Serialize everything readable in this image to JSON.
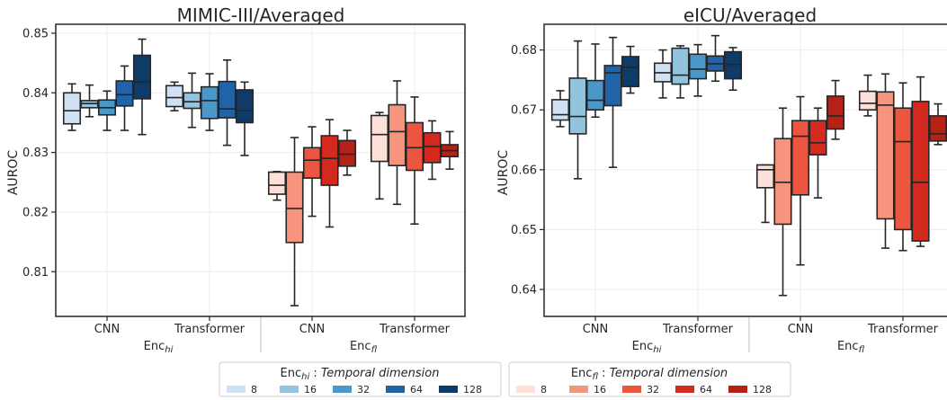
{
  "chart_data": [
    {
      "type": "box",
      "title": "MIMIC-III/Averaged",
      "ylabel": "AUROC",
      "ylim": [
        0.8025,
        0.8515
      ],
      "yticks": [
        0.81,
        0.82,
        0.83,
        0.84,
        0.85
      ],
      "ytick_labels": [
        "0.81",
        "0.82",
        "0.83",
        "0.84",
        "0.85"
      ],
      "grid": true,
      "groups": [
        {
          "label": "CNN",
          "family": "hi",
          "boxes": [
            {
              "t": "8",
              "whislo": 0.8337,
              "q1": 0.8348,
              "med": 0.837,
              "q3": 0.84,
              "whishi": 0.8415
            },
            {
              "t": "16",
              "whislo": 0.836,
              "q1": 0.8375,
              "med": 0.8382,
              "q3": 0.8387,
              "whishi": 0.8413
            },
            {
              "t": "32",
              "whislo": 0.8337,
              "q1": 0.8363,
              "med": 0.8375,
              "q3": 0.8388,
              "whishi": 0.8403
            },
            {
              "t": "64",
              "whislo": 0.8337,
              "q1": 0.8378,
              "med": 0.8397,
              "q3": 0.842,
              "whishi": 0.8445
            },
            {
              "t": "128",
              "whislo": 0.833,
              "q1": 0.839,
              "med": 0.8418,
              "q3": 0.8463,
              "whishi": 0.849
            }
          ]
        },
        {
          "label": "Transformer",
          "family": "hi",
          "boxes": [
            {
              "t": "8",
              "whislo": 0.837,
              "q1": 0.8377,
              "med": 0.8392,
              "q3": 0.8412,
              "whishi": 0.8418
            },
            {
              "t": "16",
              "whislo": 0.8342,
              "q1": 0.8374,
              "med": 0.8385,
              "q3": 0.84,
              "whishi": 0.8433
            },
            {
              "t": "32",
              "whislo": 0.8337,
              "q1": 0.8357,
              "med": 0.8387,
              "q3": 0.841,
              "whishi": 0.8432
            },
            {
              "t": "64",
              "whislo": 0.8312,
              "q1": 0.8358,
              "med": 0.8373,
              "q3": 0.8419,
              "whishi": 0.8455
            },
            {
              "t": "128",
              "whislo": 0.8295,
              "q1": 0.835,
              "med": 0.837,
              "q3": 0.8405,
              "whishi": 0.8418
            }
          ]
        },
        {
          "label": "CNN",
          "family": "fl",
          "boxes": [
            {
              "t": "8",
              "whislo": 0.822,
              "q1": 0.823,
              "med": 0.8245,
              "q3": 0.8267,
              "whishi": 0.8268
            },
            {
              "t": "16",
              "whislo": 0.8043,
              "q1": 0.8149,
              "med": 0.8206,
              "q3": 0.8267,
              "whishi": 0.8325
            },
            {
              "t": "32",
              "whislo": 0.8193,
              "q1": 0.8257,
              "med": 0.8287,
              "q3": 0.8308,
              "whishi": 0.8343
            },
            {
              "t": "64",
              "whislo": 0.8175,
              "q1": 0.8245,
              "med": 0.829,
              "q3": 0.8328,
              "whishi": 0.8355
            },
            {
              "t": "128",
              "whislo": 0.8262,
              "q1": 0.8277,
              "med": 0.8297,
              "q3": 0.832,
              "whishi": 0.8337
            }
          ]
        },
        {
          "label": "Transformer",
          "family": "fl",
          "boxes": [
            {
              "t": "8",
              "whislo": 0.8222,
              "q1": 0.8285,
              "med": 0.833,
              "q3": 0.8362,
              "whishi": 0.8367
            },
            {
              "t": "16",
              "whislo": 0.8213,
              "q1": 0.8278,
              "med": 0.8335,
              "q3": 0.838,
              "whishi": 0.842
            },
            {
              "t": "32",
              "whislo": 0.818,
              "q1": 0.827,
              "med": 0.8308,
              "q3": 0.835,
              "whishi": 0.8393
            },
            {
              "t": "64",
              "whislo": 0.8255,
              "q1": 0.8283,
              "med": 0.831,
              "q3": 0.8333,
              "whishi": 0.8353
            },
            {
              "t": "128",
              "whislo": 0.8272,
              "q1": 0.8293,
              "med": 0.8303,
              "q3": 0.8313,
              "whishi": 0.8335
            }
          ]
        }
      ]
    },
    {
      "type": "box",
      "title": "eICU/Averaged",
      "ylabel": "AUROC",
      "ylim": [
        0.6355,
        0.6843
      ],
      "yticks": [
        0.64,
        0.65,
        0.66,
        0.67,
        0.68
      ],
      "ytick_labels": [
        "0.64",
        "0.65",
        "0.66",
        "0.67",
        "0.68"
      ],
      "grid": true,
      "groups": [
        {
          "label": "CNN",
          "family": "hi",
          "boxes": [
            {
              "t": "8",
              "whislo": 0.6672,
              "q1": 0.6683,
              "med": 0.6692,
              "q3": 0.6717,
              "whishi": 0.6732
            },
            {
              "t": "16",
              "whislo": 0.6585,
              "q1": 0.666,
              "med": 0.6689,
              "q3": 0.6753,
              "whishi": 0.6815
            },
            {
              "t": "32",
              "whislo": 0.6688,
              "q1": 0.67,
              "med": 0.6716,
              "q3": 0.6749,
              "whishi": 0.681
            },
            {
              "t": "64",
              "whislo": 0.6604,
              "q1": 0.6707,
              "med": 0.6762,
              "q3": 0.6774,
              "whishi": 0.6821
            },
            {
              "t": "128",
              "whislo": 0.6728,
              "q1": 0.6739,
              "med": 0.6771,
              "q3": 0.6789,
              "whishi": 0.6806
            }
          ]
        },
        {
          "label": "Transformer",
          "family": "hi",
          "boxes": [
            {
              "t": "8",
              "whislo": 0.672,
              "q1": 0.6747,
              "med": 0.6762,
              "q3": 0.6778,
              "whishi": 0.68
            },
            {
              "t": "16",
              "whislo": 0.672,
              "q1": 0.6743,
              "med": 0.6758,
              "q3": 0.6803,
              "whishi": 0.6807
            },
            {
              "t": "32",
              "whislo": 0.6723,
              "q1": 0.6752,
              "med": 0.6768,
              "q3": 0.6793,
              "whishi": 0.6809
            },
            {
              "t": "64",
              "whislo": 0.6748,
              "q1": 0.6765,
              "med": 0.6777,
              "q3": 0.679,
              "whishi": 0.6824
            },
            {
              "t": "128",
              "whislo": 0.6733,
              "q1": 0.6752,
              "med": 0.6776,
              "q3": 0.6797,
              "whishi": 0.6804
            }
          ]
        },
        {
          "label": "CNN",
          "family": "fl",
          "boxes": [
            {
              "t": "8",
              "whislo": 0.6512,
              "q1": 0.657,
              "med": 0.66,
              "q3": 0.6608,
              "whishi": 0.6608
            },
            {
              "t": "16",
              "whislo": 0.639,
              "q1": 0.6509,
              "med": 0.6579,
              "q3": 0.6652,
              "whishi": 0.6703
            },
            {
              "t": "32",
              "whislo": 0.6441,
              "q1": 0.6558,
              "med": 0.6656,
              "q3": 0.6682,
              "whishi": 0.6722
            },
            {
              "t": "64",
              "whislo": 0.6553,
              "q1": 0.6625,
              "med": 0.6645,
              "q3": 0.6682,
              "whishi": 0.6703
            },
            {
              "t": "128",
              "whislo": 0.6651,
              "q1": 0.6668,
              "med": 0.669,
              "q3": 0.6723,
              "whishi": 0.6749
            }
          ]
        },
        {
          "label": "Transformer",
          "family": "fl",
          "boxes": [
            {
              "t": "8",
              "whislo": 0.669,
              "q1": 0.67,
              "med": 0.6711,
              "q3": 0.6731,
              "whishi": 0.6758
            },
            {
              "t": "16",
              "whislo": 0.6469,
              "q1": 0.6518,
              "med": 0.6708,
              "q3": 0.673,
              "whishi": 0.676
            },
            {
              "t": "32",
              "whislo": 0.6465,
              "q1": 0.65,
              "med": 0.6647,
              "q3": 0.6703,
              "whishi": 0.6745
            },
            {
              "t": "64",
              "whislo": 0.6472,
              "q1": 0.6481,
              "med": 0.6579,
              "q3": 0.6714,
              "whishi": 0.6755
            },
            {
              "t": "128",
              "whislo": 0.6642,
              "q1": 0.6648,
              "med": 0.666,
              "q3": 0.669,
              "whishi": 0.671
            }
          ]
        }
      ]
    }
  ],
  "xaxis": {
    "group_labels": [
      "CNN",
      "Transformer",
      "CNN",
      "Transformer"
    ],
    "enc_hi_main": "Enc",
    "enc_hi_sub": "hi",
    "enc_fl_main": "Enc",
    "enc_fl_sub": "fl"
  },
  "legends": {
    "hi": {
      "title_main": "Enc",
      "title_sub": "hi",
      "title_colon": " : ",
      "title_italic": "Temporal dimension",
      "labels": [
        "8",
        "16",
        "32",
        "64",
        "128"
      ]
    },
    "fl": {
      "title_main": "Enc",
      "title_sub": "fl",
      "title_colon": " : ",
      "title_italic": "Temporal dimension",
      "labels": [
        "8",
        "16",
        "32",
        "64",
        "128"
      ]
    }
  },
  "colors": {
    "hi": [
      "#cfe1f2",
      "#93c4de",
      "#4a98c9",
      "#2163aa",
      "#0f3b68"
    ],
    "fl": [
      "#fde0d8",
      "#f6947d",
      "#ec5640",
      "#d4291f",
      "#b42116"
    ],
    "edge": "#262626",
    "grid": "#ebebeb"
  }
}
